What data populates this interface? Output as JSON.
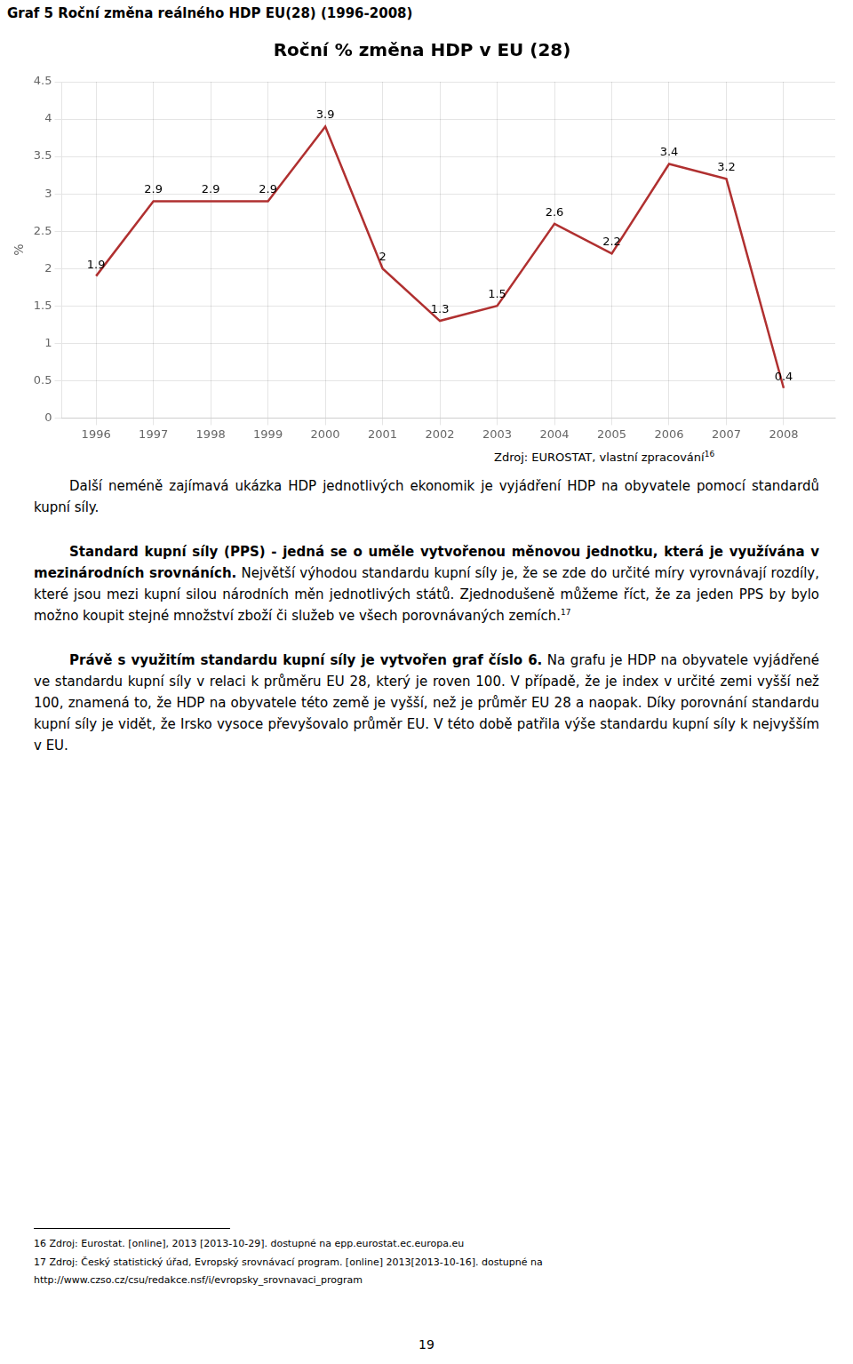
{
  "page_title": "Graf 5 Roční změna reálného HDP EU(28) (1996-2008)",
  "chart_data": {
    "type": "line",
    "title": "Roční % změna HDP v EU (28)",
    "y_label": "%",
    "x": [
      1996,
      1997,
      1998,
      1999,
      2000,
      2001,
      2002,
      2003,
      2004,
      2005,
      2006,
      2007,
      2008
    ],
    "values": [
      1.9,
      2.9,
      2.9,
      2.9,
      3.9,
      2.0,
      1.3,
      1.5,
      2.6,
      2.2,
      3.4,
      3.2,
      0.4
    ],
    "color": "#b03030",
    "marker": "none",
    "xlim": [
      1995.4,
      2008.9
    ],
    "xticks": [
      1996,
      1997,
      1998,
      1999,
      2000,
      2001,
      2002,
      2003,
      2004,
      2005,
      2006,
      2007,
      2008
    ],
    "ylim": [
      0,
      4.5
    ],
    "yticks": [
      0,
      0.5,
      1,
      1.5,
      2,
      2.5,
      3,
      3.5,
      4,
      4.5
    ],
    "grid": true,
    "data_labels": true
  },
  "source": {
    "text": "Zdroj: EUROSTAT, vlastní zpracování",
    "superscript": "16"
  },
  "paragraphs": [
    {
      "bold": "",
      "text": "Další neméně zajímavá ukázka HDP jednotlivých ekonomik je vyjádření HDP na obyvatele pomocí standardů kupní síly.",
      "superscript": ""
    },
    {
      "bold": "Standard kupní síly (PPS) - jedná se o uměle vytvořenou měnovou jednotku, která je využívána v mezinárodních srovnáních.",
      "text": " Největší výhodou standardu kupní síly je, že se zde do určité míry vyrovnávají rozdíly, které jsou mezi kupní silou národních měn jednotlivých států. Zjednodušeně můžeme říct, že za jeden PPS by bylo možno koupit stejné množství zboží či služeb ve všech porovnávaných zemích.",
      "superscript": "17"
    },
    {
      "bold": "Právě s využitím standardu kupní síly je vytvořen graf číslo 6.",
      "text": " Na grafu je HDP na obyvatele vyjádřené ve standardu kupní síly v relaci k průměru EU 28, který je roven 100. V případě, že je index v určité zemi vyšší než 100, znamená to, že HDP na obyvatele této země je vyšší, než je průměr EU 28 a naopak. Díky porovnání standardu kupní síly je vidět, že Irsko vysoce převyšovalo průměr EU. V této době patřila výše standardu kupní síly k nejvyšším v EU.",
      "superscript": ""
    }
  ],
  "footnotes": [
    "16 Zdroj: Eurostat. [online], 2013 [2013-10-29]. dostupné na epp.eurostat.ec.europa.eu",
    "17 Zdroj: Český statistický úřad, Evropský srovnávací program. [online] 2013[2013-10-16]. dostupné na",
    "http://www.czso.cz/csu/redakce.nsf/i/evropsky_srovnavaci_program"
  ],
  "page_number": "19"
}
